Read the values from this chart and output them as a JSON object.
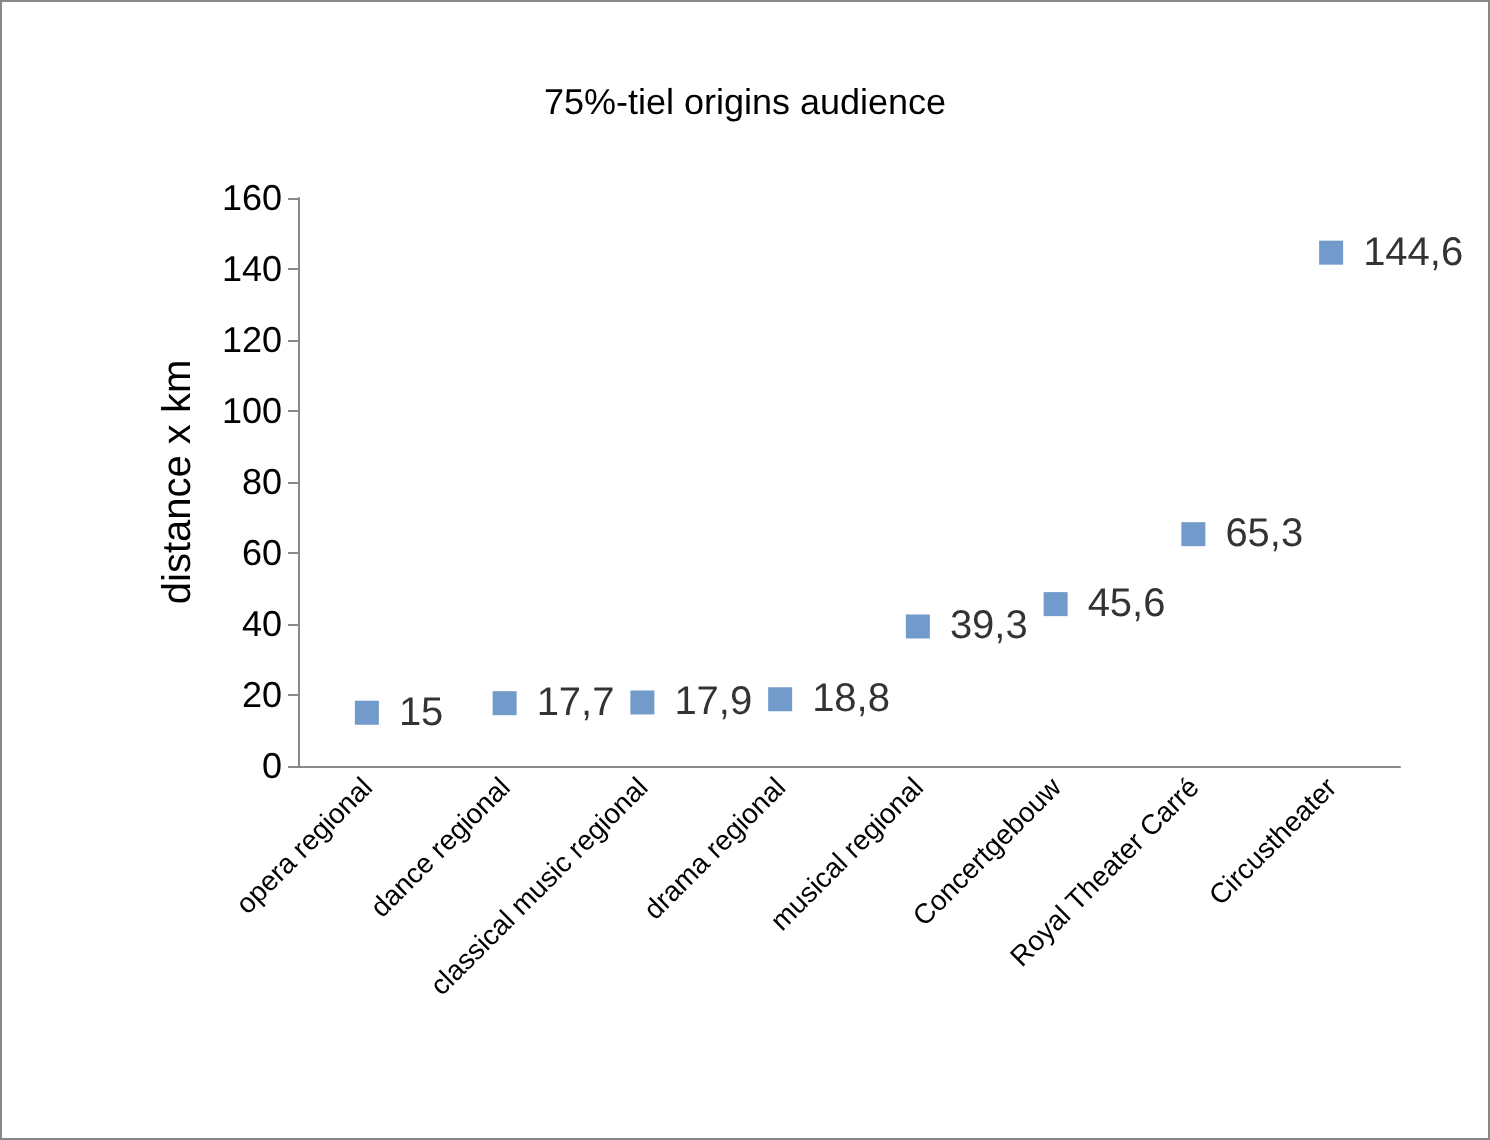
{
  "chart_data": {
    "type": "scatter",
    "title": "75%-tiel origins audience",
    "ylabel": "distance x km",
    "categories": [
      "opera regional",
      "dance regional",
      "classical music regional",
      "drama regional",
      "musical regional",
      "Concertgebouw",
      "Royal Theater Carré",
      "Circustheater"
    ],
    "series": [
      {
        "color": "#4f81bd",
        "values": [
          15,
          17.7,
          17.9,
          18.8,
          39.3,
          45.6,
          65.3,
          144.6
        ],
        "value_labels": [
          "15",
          "17,7",
          "17,9",
          "18,8",
          "39,3",
          "45,6",
          "65,3",
          "144,6"
        ]
      }
    ],
    "ylim": [
      0,
      160
    ],
    "yticks": [
      0,
      20,
      40,
      60,
      80,
      100,
      120,
      140,
      160
    ],
    "grid": false,
    "marker": "square"
  }
}
